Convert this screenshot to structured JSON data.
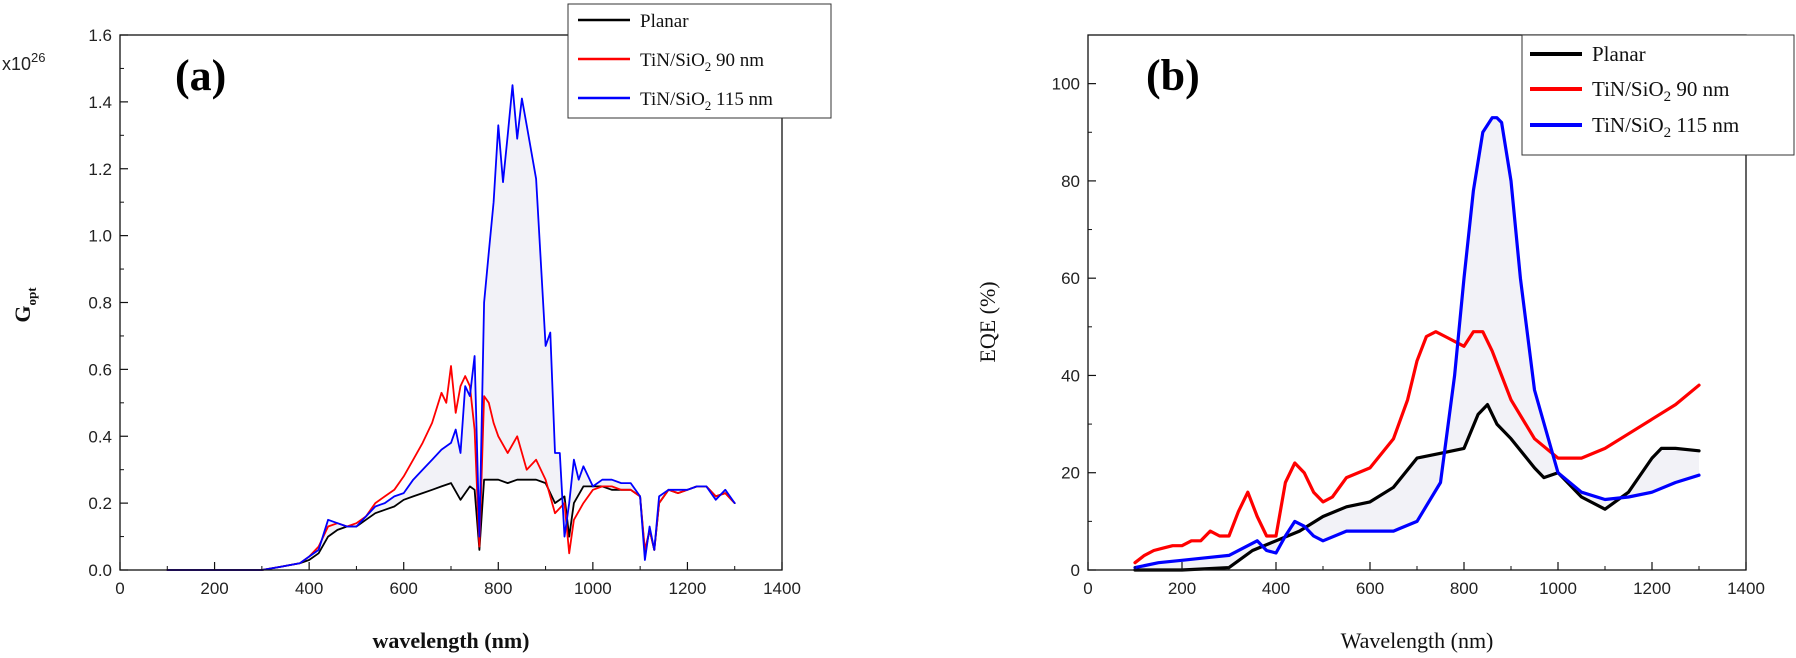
{
  "chart_data": [
    {
      "type": "line",
      "panel_label": "(a)",
      "xlabel": "wavelength (nm)",
      "ylabel": "G",
      "ylabel_sub": "opt",
      "y_multiplier_base": "x10",
      "y_multiplier_exp": "26",
      "xlim": [
        0,
        1400
      ],
      "ylim": [
        0,
        1.6
      ],
      "x_ticks": [
        "0",
        "200",
        "400",
        "600",
        "800",
        "1000",
        "1200",
        "1400"
      ],
      "y_ticks": [
        "0.0",
        "0.2",
        "0.4",
        "0.6",
        "0.8",
        "1.0",
        "1.2",
        "1.4",
        "1.6"
      ],
      "x_tick_values": [
        0,
        200,
        400,
        600,
        800,
        1000,
        1200,
        1400
      ],
      "y_tick_values": [
        0,
        0.2,
        0.4,
        0.6,
        0.8,
        1.0,
        1.2,
        1.4,
        1.6
      ],
      "legend_position": "top-right",
      "grid": false,
      "series": [
        {
          "name": "Planar",
          "color": "#000000",
          "x": [
            100,
            300,
            340,
            380,
            400,
            420,
            440,
            460,
            480,
            500,
            520,
            540,
            560,
            580,
            600,
            620,
            640,
            660,
            680,
            700,
            720,
            740,
            750,
            760,
            770,
            780,
            800,
            820,
            840,
            860,
            880,
            900,
            920,
            940,
            950,
            960,
            980,
            1000,
            1020,
            1040,
            1060,
            1080,
            1100,
            1110,
            1120,
            1130,
            1140,
            1160,
            1180,
            1200,
            1220,
            1240,
            1260,
            1280,
            1300
          ],
          "y": [
            0,
            0,
            0.01,
            0.02,
            0.03,
            0.05,
            0.1,
            0.12,
            0.13,
            0.13,
            0.15,
            0.17,
            0.18,
            0.19,
            0.21,
            0.22,
            0.23,
            0.24,
            0.25,
            0.26,
            0.21,
            0.25,
            0.24,
            0.06,
            0.27,
            0.27,
            0.27,
            0.26,
            0.27,
            0.27,
            0.27,
            0.26,
            0.2,
            0.22,
            0.1,
            0.2,
            0.25,
            0.25,
            0.25,
            0.24,
            0.24,
            0.24,
            0.22,
            0.05,
            0.12,
            0.06,
            0.2,
            0.24,
            0.23,
            0.24,
            0.25,
            0.25,
            0.22,
            0.23,
            0.2
          ]
        },
        {
          "name": "TiN/SiO2 90 nm",
          "name_main": "TiN/SiO",
          "name_sub": "2",
          "name_tail": " 90 nm",
          "color": "#ff0000",
          "x": [
            100,
            300,
            340,
            380,
            400,
            420,
            440,
            460,
            480,
            500,
            520,
            540,
            560,
            580,
            600,
            620,
            640,
            660,
            680,
            690,
            700,
            710,
            720,
            730,
            740,
            750,
            760,
            770,
            780,
            790,
            800,
            820,
            840,
            860,
            880,
            900,
            920,
            940,
            950,
            960,
            980,
            1000,
            1020,
            1040,
            1060,
            1080,
            1100,
            1110,
            1120,
            1130,
            1140,
            1160,
            1180,
            1200,
            1220,
            1240,
            1260,
            1280,
            1300
          ],
          "y": [
            0,
            0,
            0.01,
            0.02,
            0.04,
            0.07,
            0.13,
            0.14,
            0.13,
            0.14,
            0.16,
            0.2,
            0.22,
            0.24,
            0.28,
            0.33,
            0.38,
            0.44,
            0.53,
            0.5,
            0.61,
            0.47,
            0.55,
            0.58,
            0.55,
            0.42,
            0.07,
            0.52,
            0.5,
            0.44,
            0.4,
            0.35,
            0.4,
            0.3,
            0.33,
            0.27,
            0.17,
            0.2,
            0.05,
            0.15,
            0.2,
            0.24,
            0.25,
            0.25,
            0.24,
            0.24,
            0.22,
            0.06,
            0.12,
            0.06,
            0.2,
            0.24,
            0.23,
            0.24,
            0.25,
            0.25,
            0.22,
            0.23,
            0.2
          ]
        },
        {
          "name": "TiN/SiO2 115 nm",
          "name_main": "TiN/SiO",
          "name_sub": "2",
          "name_tail": " 115 nm",
          "color": "#0000ff",
          "x": [
            100,
            300,
            340,
            380,
            400,
            420,
            440,
            460,
            480,
            500,
            520,
            540,
            560,
            580,
            600,
            620,
            640,
            660,
            680,
            700,
            710,
            720,
            730,
            740,
            750,
            760,
            770,
            780,
            790,
            800,
            810,
            820,
            830,
            840,
            850,
            860,
            880,
            900,
            910,
            920,
            930,
            940,
            950,
            960,
            970,
            980,
            1000,
            1020,
            1040,
            1060,
            1080,
            1100,
            1110,
            1120,
            1130,
            1140,
            1160,
            1180,
            1200,
            1220,
            1240,
            1260,
            1280,
            1300
          ],
          "y": [
            0,
            0,
            0.01,
            0.02,
            0.04,
            0.06,
            0.15,
            0.14,
            0.13,
            0.13,
            0.16,
            0.19,
            0.2,
            0.22,
            0.23,
            0.27,
            0.3,
            0.33,
            0.36,
            0.38,
            0.42,
            0.35,
            0.55,
            0.52,
            0.64,
            0.1,
            0.8,
            0.95,
            1.1,
            1.33,
            1.16,
            1.3,
            1.45,
            1.29,
            1.41,
            1.33,
            1.17,
            0.67,
            0.71,
            0.35,
            0.35,
            0.1,
            0.2,
            0.33,
            0.27,
            0.31,
            0.25,
            0.27,
            0.27,
            0.26,
            0.26,
            0.22,
            0.03,
            0.13,
            0.06,
            0.22,
            0.24,
            0.24,
            0.24,
            0.25,
            0.25,
            0.21,
            0.24,
            0.2
          ]
        }
      ]
    },
    {
      "type": "line",
      "panel_label": "(b)",
      "xlabel": "Wavelength (nm)",
      "ylabel": "EQE (%)",
      "xlim": [
        0,
        1400
      ],
      "ylim": [
        0,
        110
      ],
      "x_ticks": [
        "0",
        "200",
        "400",
        "600",
        "800",
        "1000",
        "1200",
        "1400"
      ],
      "y_ticks": [
        "0",
        "20",
        "40",
        "60",
        "80",
        "100"
      ],
      "x_tick_values": [
        0,
        200,
        400,
        600,
        800,
        1000,
        1200,
        1400
      ],
      "y_tick_values": [
        0,
        20,
        40,
        60,
        80,
        100
      ],
      "legend_position": "top-right",
      "grid": false,
      "series": [
        {
          "name": "Planar",
          "color": "#000000",
          "x": [
            100,
            200,
            300,
            350,
            400,
            450,
            500,
            550,
            600,
            650,
            700,
            750,
            800,
            830,
            850,
            870,
            900,
            950,
            970,
            1000,
            1050,
            1100,
            1150,
            1200,
            1220,
            1250,
            1300
          ],
          "y": [
            0,
            0,
            0.5,
            4,
            6,
            8,
            11,
            13,
            14,
            17,
            23,
            24,
            25,
            32,
            34,
            30,
            27,
            21,
            19,
            20,
            15,
            12.5,
            16,
            23,
            25,
            25,
            24.5
          ]
        },
        {
          "name": "TiN/SiO2 90 nm",
          "name_main": "TiN/SiO",
          "name_sub": "2",
          "name_tail": " 90 nm",
          "color": "#ff0000",
          "x": [
            100,
            120,
            140,
            160,
            180,
            200,
            220,
            240,
            260,
            280,
            300,
            320,
            340,
            360,
            380,
            400,
            420,
            440,
            460,
            480,
            500,
            520,
            550,
            600,
            650,
            680,
            700,
            720,
            740,
            760,
            800,
            820,
            840,
            860,
            880,
            900,
            950,
            1000,
            1050,
            1100,
            1150,
            1200,
            1250,
            1300
          ],
          "y": [
            1.5,
            3,
            4,
            4.5,
            5,
            5,
            6,
            6,
            8,
            7,
            7,
            12,
            16,
            11,
            7,
            7,
            18,
            22,
            20,
            16,
            14,
            15,
            19,
            21,
            27,
            35,
            43,
            48,
            49,
            48,
            46,
            49,
            49,
            45,
            40,
            35,
            27,
            23,
            23,
            25,
            28,
            31,
            34,
            38
          ]
        },
        {
          "name": "TiN/SiO2 115 nm",
          "name_main": "TiN/SiO",
          "name_sub": "2",
          "name_tail": " 115 nm",
          "color": "#0000ff",
          "x": [
            100,
            150,
            200,
            250,
            300,
            340,
            360,
            380,
            400,
            420,
            440,
            460,
            480,
            500,
            550,
            600,
            650,
            700,
            750,
            780,
            800,
            820,
            840,
            860,
            870,
            880,
            900,
            920,
            950,
            1000,
            1050,
            1100,
            1150,
            1200,
            1250,
            1300
          ],
          "y": [
            0.5,
            1.5,
            2,
            2.5,
            3,
            5,
            6,
            4,
            3.5,
            7,
            10,
            9,
            7,
            6,
            8,
            8,
            8,
            10,
            18,
            40,
            60,
            78,
            90,
            93,
            93,
            92,
            80,
            60,
            37,
            20,
            16,
            14.5,
            15,
            16,
            18,
            19.5
          ]
        }
      ]
    }
  ]
}
